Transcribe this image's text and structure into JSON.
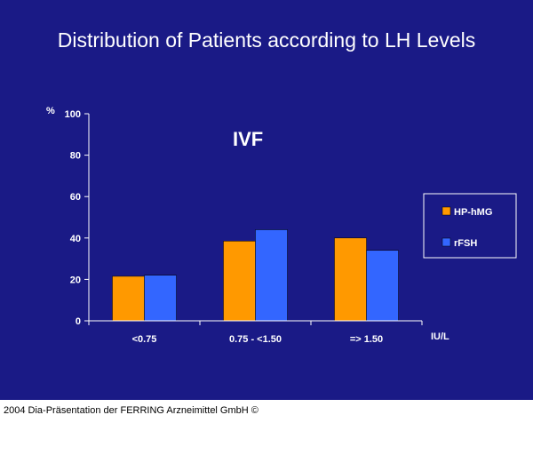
{
  "slide": {
    "background": "#1a1a86",
    "title": "Distribution of Patients according to LH Levels"
  },
  "footer": "2004 Dia-Präsentation der FERRING Arzneimittel GmbH ©",
  "chart_data": {
    "type": "bar",
    "annotation": "IVF",
    "ylabel": "%",
    "xlabel": "IU/L",
    "categories": [
      "<0.75",
      "0.75 - <1.50",
      "=> 1.50"
    ],
    "series": [
      {
        "name": "HP-hMG",
        "values": [
          21.5,
          38.5,
          40
        ],
        "color": "#ff9900"
      },
      {
        "name": "rFSH",
        "values": [
          22,
          44,
          34
        ],
        "color": "#3366ff"
      }
    ],
    "ylim": [
      0,
      100
    ],
    "yticks": [
      0,
      20,
      40,
      60,
      80,
      100
    ],
    "grid": false,
    "legend_position": "right"
  }
}
